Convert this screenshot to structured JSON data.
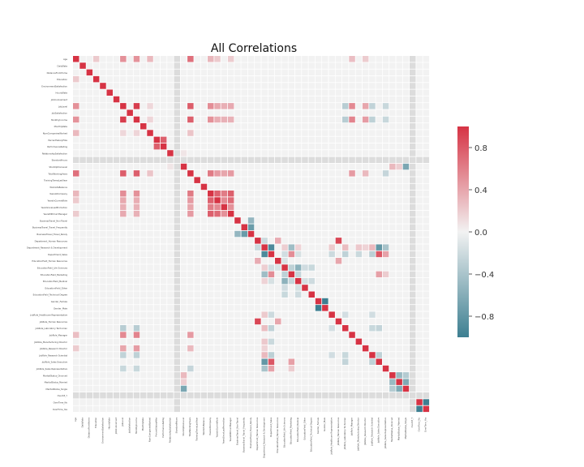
{
  "chart_data": {
    "type": "heatmap",
    "title": "All Correlations",
    "labels": [
      "Age",
      "DailyRate",
      "DistanceFromHome",
      "Education",
      "EnvironmentSatisfaction",
      "HourlyRate",
      "JobInvolvement",
      "JobLevel",
      "JobSatisfaction",
      "MonthlyIncome",
      "MonthlyRate",
      "NumCompaniesWorked",
      "PercentSalaryHike",
      "PerformanceRating",
      "RelationshipSatisfaction",
      "StandardHours",
      "StockOptionLevel",
      "TotalWorkingYears",
      "TrainingTimesLastYear",
      "WorkLifeBalance",
      "YearsAtCompany",
      "YearsInCurrentRole",
      "YearsSinceLastPromotion",
      "YearsWithCurrManager",
      "BusinessTravel_Non-Travel",
      "BusinessTravel_Travel_Frequently",
      "BusinessTravel_Travel_Rarely",
      "Department_Human Resources",
      "Department_Research & Development",
      "Department_Sales",
      "EducationField_Human Resources",
      "EducationField_Life Sciences",
      "EducationField_Marketing",
      "EducationField_Medical",
      "EducationField_Other",
      "EducationField_Technical Degree",
      "Gender_Female",
      "Gender_Male",
      "JobRole_Healthcare Representative",
      "JobRole_Human Resources",
      "JobRole_Laboratory Technician",
      "JobRole_Manager",
      "JobRole_Manufacturing Director",
      "JobRole_Research Director",
      "JobRole_Research Scientist",
      "JobRole_Sales Executive",
      "JobRole_Sales Representative",
      "MaritalStatus_Divorced",
      "MaritalStatus_Married",
      "MaritalStatus_Single",
      "Over18_Y",
      "OverTime_No",
      "OverTime_Yes"
    ],
    "colorbar": {
      "min": -1.0,
      "max": 1.0,
      "ticks": [
        "0.8",
        "0.4",
        "0.0",
        "−0.4",
        "−0.8"
      ],
      "tick_values": [
        0.8,
        0.4,
        0.0,
        -0.4,
        -0.8
      ]
    },
    "colors": {
      "negative": "#3d7f91",
      "neutral": "#f2f2f2",
      "positive": "#d63344",
      "missing": "#dcdcdc"
    },
    "constant_columns": [
      "StandardHours",
      "Over18_Y"
    ],
    "pairs": [
      [
        "Age",
        "JobLevel",
        0.51
      ],
      [
        "Age",
        "MonthlyIncome",
        0.5
      ],
      [
        "Age",
        "TotalWorkingYears",
        0.68
      ],
      [
        "Age",
        "NumCompaniesWorked",
        0.3
      ],
      [
        "Age",
        "YearsAtCompany",
        0.31
      ],
      [
        "Age",
        "YearsInCurrentRole",
        0.21
      ],
      [
        "Age",
        "YearsWithCurrManager",
        0.2
      ],
      [
        "Age",
        "Education",
        0.21
      ],
      [
        "Age",
        "JobRole_Manager",
        0.27
      ],
      [
        "Age",
        "JobRole_Research Director",
        0.2
      ],
      [
        "JobLevel",
        "MonthlyIncome",
        0.95
      ],
      [
        "JobLevel",
        "TotalWorkingYears",
        0.78
      ],
      [
        "JobLevel",
        "YearsAtCompany",
        0.53
      ],
      [
        "JobLevel",
        "YearsInCurrentRole",
        0.39
      ],
      [
        "JobLevel",
        "YearsWithCurrManager",
        0.38
      ],
      [
        "JobLevel",
        "YearsSinceLastPromotion",
        0.35
      ],
      [
        "JobLevel",
        "NumCompaniesWorked",
        0.14
      ],
      [
        "JobLevel",
        "JobRole_Manager",
        0.55
      ],
      [
        "JobLevel",
        "JobRole_Research Director",
        0.4
      ],
      [
        "JobLevel",
        "JobRole_Laboratory Technician",
        -0.32
      ],
      [
        "JobLevel",
        "JobRole_Research Scientist",
        -0.27
      ],
      [
        "JobLevel",
        "JobRole_Sales Representative",
        -0.23
      ],
      [
        "MonthlyIncome",
        "TotalWorkingYears",
        0.77
      ],
      [
        "MonthlyIncome",
        "YearsAtCompany",
        0.51
      ],
      [
        "MonthlyIncome",
        "YearsInCurrentRole",
        0.36
      ],
      [
        "MonthlyIncome",
        "YearsWithCurrManager",
        0.34
      ],
      [
        "MonthlyIncome",
        "YearsSinceLastPromotion",
        0.34
      ],
      [
        "MonthlyIncome",
        "NumCompaniesWorked",
        0.15
      ],
      [
        "MonthlyIncome",
        "JobRole_Manager",
        0.58
      ],
      [
        "MonthlyIncome",
        "JobRole_Research Director",
        0.45
      ],
      [
        "MonthlyIncome",
        "JobRole_Laboratory Technician",
        -0.32
      ],
      [
        "MonthlyIncome",
        "JobRole_Research Scientist",
        -0.29
      ],
      [
        "MonthlyIncome",
        "JobRole_Sales Representative",
        -0.23
      ],
      [
        "PercentSalaryHike",
        "PerformanceRating",
        0.77
      ],
      [
        "TotalWorkingYears",
        "YearsAtCompany",
        0.63
      ],
      [
        "TotalWorkingYears",
        "YearsInCurrentRole",
        0.46
      ],
      [
        "TotalWorkingYears",
        "YearsWithCurrManager",
        0.46
      ],
      [
        "TotalWorkingYears",
        "YearsSinceLastPromotion",
        0.4
      ],
      [
        "TotalWorkingYears",
        "NumCompaniesWorked",
        0.24
      ],
      [
        "TotalWorkingYears",
        "JobRole_Manager",
        0.46
      ],
      [
        "TotalWorkingYears",
        "JobRole_Research Director",
        0.3
      ],
      [
        "TotalWorkingYears",
        "JobRole_Sales Representative",
        -0.25
      ],
      [
        "YearsAtCompany",
        "YearsInCurrentRole",
        0.76
      ],
      [
        "YearsAtCompany",
        "YearsSinceLastPromotion",
        0.62
      ],
      [
        "YearsAtCompany",
        "YearsWithCurrManager",
        0.77
      ],
      [
        "YearsInCurrentRole",
        "YearsSinceLastPromotion",
        0.55
      ],
      [
        "YearsInCurrentRole",
        "YearsWithCurrManager",
        0.71
      ],
      [
        "YearsSinceLastPromotion",
        "YearsWithCurrManager",
        0.51
      ],
      [
        "StockOptionLevel",
        "MaritalStatus_Single",
        -0.66
      ],
      [
        "StockOptionLevel",
        "MaritalStatus_Married",
        0.19
      ],
      [
        "StockOptionLevel",
        "MaritalStatus_Divorced",
        0.3
      ],
      [
        "StockOptionLevel",
        "RelationshipSatisfaction",
        0.07
      ],
      [
        "BusinessTravel_Non-Travel",
        "BusinessTravel_Travel_Rarely",
        -0.52
      ],
      [
        "BusinessTravel_Travel_Frequently",
        "BusinessTravel_Travel_Rarely",
        -0.75
      ],
      [
        "Department_Human Resources",
        "Department_Research & Development",
        -0.21
      ],
      [
        "Department_Human Resources",
        "EducationField_Human Resources",
        0.37
      ],
      [
        "Department_Human Resources",
        "JobRole_Human Resources",
        0.9
      ],
      [
        "Department_Research & Development",
        "Department_Sales",
        -0.91
      ],
      [
        "Department_Research & Development",
        "EducationField_Marketing",
        -0.46
      ],
      [
        "Department_Research & Development",
        "EducationField_Life Sciences",
        0.19
      ],
      [
        "Department_Research & Development",
        "EducationField_Medical",
        0.16
      ],
      [
        "Department_Research & Development",
        "JobRole_Sales Executive",
        -0.79
      ],
      [
        "Department_Research & Development",
        "JobRole_Sales Representative",
        -0.41
      ],
      [
        "Department_Research & Development",
        "JobRole_Laboratory Technician",
        0.28
      ],
      [
        "Department_Research & Development",
        "JobRole_Research Scientist",
        0.3
      ],
      [
        "Department_Research & Development",
        "JobRole_Manufacturing Director",
        0.22
      ],
      [
        "Department_Research & Development",
        "JobRole_Healthcare Representative",
        0.21
      ],
      [
        "Department_Research & Development",
        "JobRole_Research Director",
        0.16
      ],
      [
        "Department_Sales",
        "EducationField_Marketing",
        0.53
      ],
      [
        "Department_Sales",
        "EducationField_Life Sciences",
        -0.18
      ],
      [
        "Department_Sales",
        "EducationField_Medical",
        -0.15
      ],
      [
        "Department_Sales",
        "JobRole_Sales Executive",
        0.81
      ],
      [
        "Department_Sales",
        "JobRole_Sales Representative",
        0.42
      ],
      [
        "Department_Sales",
        "JobRole_Laboratory Technician",
        -0.28
      ],
      [
        "Department_Sales",
        "JobRole_Research Scientist",
        -0.3
      ],
      [
        "Department_Sales",
        "JobRole_Manufacturing Director",
        -0.22
      ],
      [
        "Department_Sales",
        "JobRole_Healthcare Representative",
        -0.21
      ],
      [
        "EducationField_Human Resources",
        "JobRole_Human Resources",
        0.4
      ],
      [
        "EducationField_Human Resources",
        "EducationField_Life Sciences",
        -0.13
      ],
      [
        "EducationField_Life Sciences",
        "EducationField_Medical",
        -0.56
      ],
      [
        "EducationField_Life Sciences",
        "EducationField_Marketing",
        -0.29
      ],
      [
        "EducationField_Life Sciences",
        "EducationField_Other",
        -0.19
      ],
      [
        "EducationField_Life Sciences",
        "EducationField_Technical Degree",
        -0.23
      ],
      [
        "EducationField_Marketing",
        "EducationField_Medical",
        -0.25
      ],
      [
        "EducationField_Marketing",
        "JobRole_Sales Executive",
        0.43
      ],
      [
        "EducationField_Marketing",
        "JobRole_Sales Representative",
        0.2
      ],
      [
        "EducationField_Medical",
        "EducationField_Other",
        -0.16
      ],
      [
        "EducationField_Medical",
        "EducationField_Technical Degree",
        -0.2
      ],
      [
        "Gender_Female",
        "Gender_Male",
        -1.0
      ],
      [
        "JobRole_Sales Executive",
        "JobRole_Research Scientist",
        -0.28
      ],
      [
        "JobRole_Sales Executive",
        "JobRole_Laboratory Technician",
        -0.26
      ],
      [
        "JobRole_Research Scientist",
        "JobRole_Laboratory Technician",
        -0.23
      ],
      [
        "JobRole_Research Scientist",
        "JobRole_Healthcare Representative",
        -0.18
      ],
      [
        "JobRole_Laboratory Technician",
        "JobRole_Healthcare Representative",
        -0.17
      ],
      [
        "MaritalStatus_Divorced",
        "MaritalStatus_Married",
        -0.49
      ],
      [
        "MaritalStatus_Divorced",
        "MaritalStatus_Single",
        -0.34
      ],
      [
        "MaritalStatus_Married",
        "MaritalStatus_Single",
        -0.63
      ],
      [
        "OverTime_No",
        "OverTime_Yes",
        -1.0
      ]
    ]
  }
}
